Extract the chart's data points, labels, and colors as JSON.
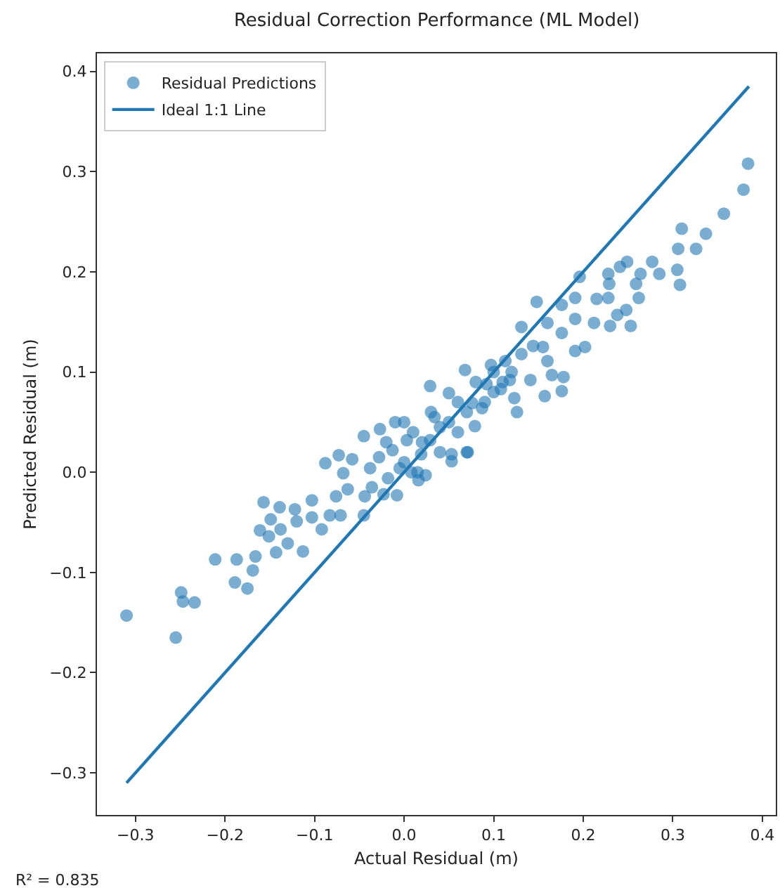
{
  "chart_data": {
    "type": "scatter",
    "title": "Residual Correction Performance (ML Model)",
    "xlabel": "Actual Residual (m)",
    "ylabel": "Predicted Residual (m)",
    "annotations": [
      "R² = 0.835"
    ],
    "xlim": [
      -0.343,
      0.415
    ],
    "ylim": [
      -0.342,
      0.418
    ],
    "xticks": [
      {
        "value": -0.3,
        "label": "−0.3"
      },
      {
        "value": -0.2,
        "label": "−0.2"
      },
      {
        "value": -0.1,
        "label": "−0.1"
      },
      {
        "value": 0,
        "label": "0.0"
      },
      0.1,
      0.2,
      0.3,
      0.4
    ],
    "yticks": [
      {
        "value": -0.3,
        "label": "−0.3"
      },
      {
        "value": -0.2,
        "label": "−0.2"
      },
      {
        "value": -0.1,
        "label": "−0.1"
      },
      {
        "value": 0,
        "label": "0.0"
      },
      0.1,
      0.2,
      0.3,
      0.4
    ],
    "legend": "top left",
    "marker": "circle",
    "series": [
      {
        "name": "Residual Predictions",
        "color": "#1f77b4",
        "x": [
          -0.31,
          -0.255,
          -0.249,
          -0.247,
          -0.234,
          -0.211,
          -0.189,
          -0.187,
          -0.175,
          -0.169,
          -0.166,
          -0.161,
          -0.157,
          -0.149,
          -0.151,
          -0.143,
          -0.139,
          -0.138,
          -0.13,
          -0.122,
          -0.12,
          -0.113,
          -0.103,
          -0.103,
          -0.092,
          -0.088,
          -0.083,
          -0.076,
          -0.073,
          -0.071,
          -0.068,
          -0.063,
          -0.058,
          -0.045,
          -0.045,
          -0.044,
          -0.038,
          -0.036,
          -0.028,
          -0.027,
          -0.023,
          -0.018,
          -0.013,
          -0.008,
          -0.005,
          0.003,
          0.008,
          0.016,
          0.019,
          0.029,
          0.071,
          0.053,
          0.079,
          0.024,
          0.384,
          0.379,
          0.357,
          0.337,
          0.326,
          0.31,
          0.306,
          0.305,
          0.308,
          0.285,
          0.277,
          0.264,
          0.259,
          0.262,
          0.249,
          0.241,
          0.228,
          0.229,
          0.248,
          0.253,
          0.23,
          0.238,
          0.228,
          0.215,
          0.212,
          0.196,
          0.191,
          0.191,
          0.176,
          0.176,
          0.148,
          0.16,
          0.155,
          0.131,
          0.131,
          0.144,
          0.165,
          0.176,
          0.157,
          0.178,
          0.191,
          0.202,
          0.113,
          0.118,
          0.126,
          0.123,
          0.097,
          0.092,
          0.076,
          0.068,
          0.05,
          0.029,
          0.034,
          0.053,
          0.07,
          0.087,
          0.108,
          0.141,
          0.16,
          0.0,
          0.01,
          0.02,
          0.03,
          0.04,
          0.05,
          0.06,
          0.07,
          0.08,
          0.09,
          0.1,
          0.1,
          0.11,
          0.12,
          0.04,
          -0.01,
          0.0,
          0.06,
          0.015,
          -0.02
        ],
        "values": [
          -0.143,
          -0.165,
          -0.12,
          -0.129,
          -0.13,
          -0.087,
          -0.11,
          -0.087,
          -0.116,
          -0.098,
          -0.084,
          -0.058,
          -0.03,
          -0.047,
          -0.064,
          -0.08,
          -0.035,
          -0.057,
          -0.071,
          -0.037,
          -0.049,
          -0.079,
          -0.028,
          -0.045,
          -0.057,
          0.009,
          -0.043,
          -0.024,
          0.017,
          -0.043,
          -0.001,
          -0.017,
          0.013,
          0.036,
          -0.043,
          -0.024,
          0.004,
          -0.015,
          0.015,
          0.043,
          -0.022,
          -0.006,
          0.022,
          -0.023,
          0.004,
          0.032,
          0.0,
          -0.008,
          0.018,
          0.032,
          0.02,
          0.011,
          0.046,
          -0.003,
          0.308,
          0.282,
          0.258,
          0.238,
          0.223,
          0.243,
          0.223,
          0.202,
          0.187,
          0.198,
          0.21,
          0.198,
          0.188,
          0.174,
          0.21,
          0.205,
          0.198,
          0.188,
          0.162,
          0.146,
          0.146,
          0.157,
          0.174,
          0.173,
          0.149,
          0.195,
          0.174,
          0.153,
          0.167,
          0.139,
          0.17,
          0.149,
          0.125,
          0.145,
          0.118,
          0.126,
          0.097,
          0.081,
          0.076,
          0.095,
          0.121,
          0.125,
          0.111,
          0.092,
          0.06,
          0.074,
          0.107,
          0.088,
          0.069,
          0.102,
          0.079,
          0.086,
          0.055,
          0.018,
          0.02,
          0.064,
          0.083,
          0.092,
          0.111,
          0.05,
          0.04,
          0.03,
          0.06,
          0.045,
          0.05,
          0.07,
          0.06,
          0.09,
          0.07,
          0.08,
          0.1,
          0.09,
          0.1,
          0.02,
          0.05,
          0.01,
          0.04,
          0.0,
          0.03
        ]
      },
      {
        "name": "Ideal 1:1 Line",
        "color": "#1f77b4",
        "type": "line",
        "marker": "none",
        "line_style": "solid",
        "x": [
          -0.31,
          0.385
        ],
        "values": [
          -0.31,
          0.385
        ]
      }
    ]
  }
}
